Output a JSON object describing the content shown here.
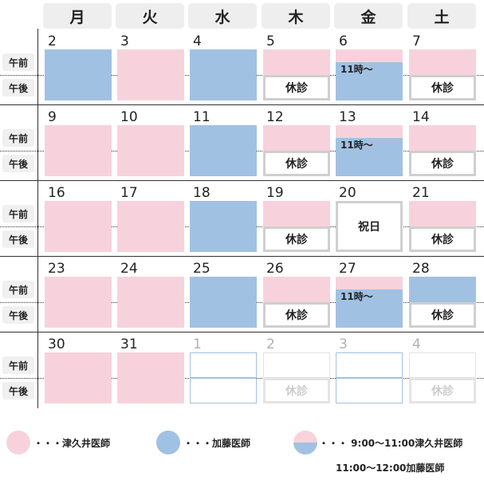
{
  "weekdays": [
    "月",
    "火",
    "水",
    "木",
    "金",
    "土"
  ],
  "row_labels": {
    "am": "午前",
    "pm": "午後"
  },
  "weeks": [
    {
      "days": [
        {
          "num": "2",
          "am": "blue",
          "pm": "blue"
        },
        {
          "num": "3",
          "am": "pink",
          "pm": "pink"
        },
        {
          "num": "4",
          "am": "blue",
          "pm": "blue"
        },
        {
          "num": "5",
          "am": "pink",
          "pm": "closed",
          "pm_text": "休診"
        },
        {
          "num": "6",
          "am": "split",
          "pm": "blue",
          "note": "11時～"
        },
        {
          "num": "7",
          "am": "pink",
          "pm": "closed",
          "pm_text": "休診"
        }
      ]
    },
    {
      "days": [
        {
          "num": "9",
          "am": "pink",
          "pm": "pink"
        },
        {
          "num": "10",
          "am": "pink",
          "pm": "pink"
        },
        {
          "num": "11",
          "am": "blue",
          "pm": "blue"
        },
        {
          "num": "12",
          "am": "pink",
          "pm": "closed",
          "pm_text": "休診"
        },
        {
          "num": "13",
          "am": "split",
          "pm": "blue",
          "note": "11時～"
        },
        {
          "num": "14",
          "am": "pink",
          "pm": "closed",
          "pm_text": "休診"
        }
      ]
    },
    {
      "days": [
        {
          "num": "16",
          "am": "pink",
          "pm": "pink"
        },
        {
          "num": "17",
          "am": "pink",
          "pm": "pink"
        },
        {
          "num": "18",
          "am": "blue",
          "pm": "blue"
        },
        {
          "num": "19",
          "am": "pink",
          "pm": "closed",
          "pm_text": "休診"
        },
        {
          "num": "20",
          "am": "holiday",
          "pm": "holiday",
          "holiday_text": "祝日"
        },
        {
          "num": "21",
          "am": "pink",
          "pm": "closed",
          "pm_text": "休診"
        }
      ]
    },
    {
      "days": [
        {
          "num": "23",
          "am": "pink",
          "pm": "pink"
        },
        {
          "num": "24",
          "am": "pink",
          "pm": "pink"
        },
        {
          "num": "25",
          "am": "blue",
          "pm": "blue"
        },
        {
          "num": "26",
          "am": "pink",
          "pm": "closed",
          "pm_text": "休診"
        },
        {
          "num": "27",
          "am": "split",
          "pm": "blue",
          "note": "11時～"
        },
        {
          "num": "28",
          "am": "blue",
          "pm": "closed",
          "pm_text": "休診"
        }
      ]
    },
    {
      "days": [
        {
          "num": "30",
          "am": "pink",
          "pm": "pink"
        },
        {
          "num": "31",
          "am": "pink",
          "pm": "pink"
        },
        {
          "num": "1",
          "am": "outline",
          "pm": "outline",
          "faded": true
        },
        {
          "num": "2",
          "am": "outline-grey",
          "pm": "closed-faded",
          "pm_text": "休診",
          "faded": true
        },
        {
          "num": "3",
          "am": "outline",
          "pm": "outline",
          "faded": true
        },
        {
          "num": "4",
          "am": "outline-grey",
          "pm": "closed-faded",
          "pm_text": "休診",
          "faded": true
        }
      ]
    }
  ],
  "legend": {
    "tsukui": "・・・津久井医師",
    "kato": "・・・加藤医師",
    "split_line1": "・・・ 9:00～11:00津久井医師",
    "split_line2": "11:00～12:00加藤医師"
  },
  "colors": {
    "tsukui": "#f7d2dc",
    "kato": "#a1c1e3"
  }
}
